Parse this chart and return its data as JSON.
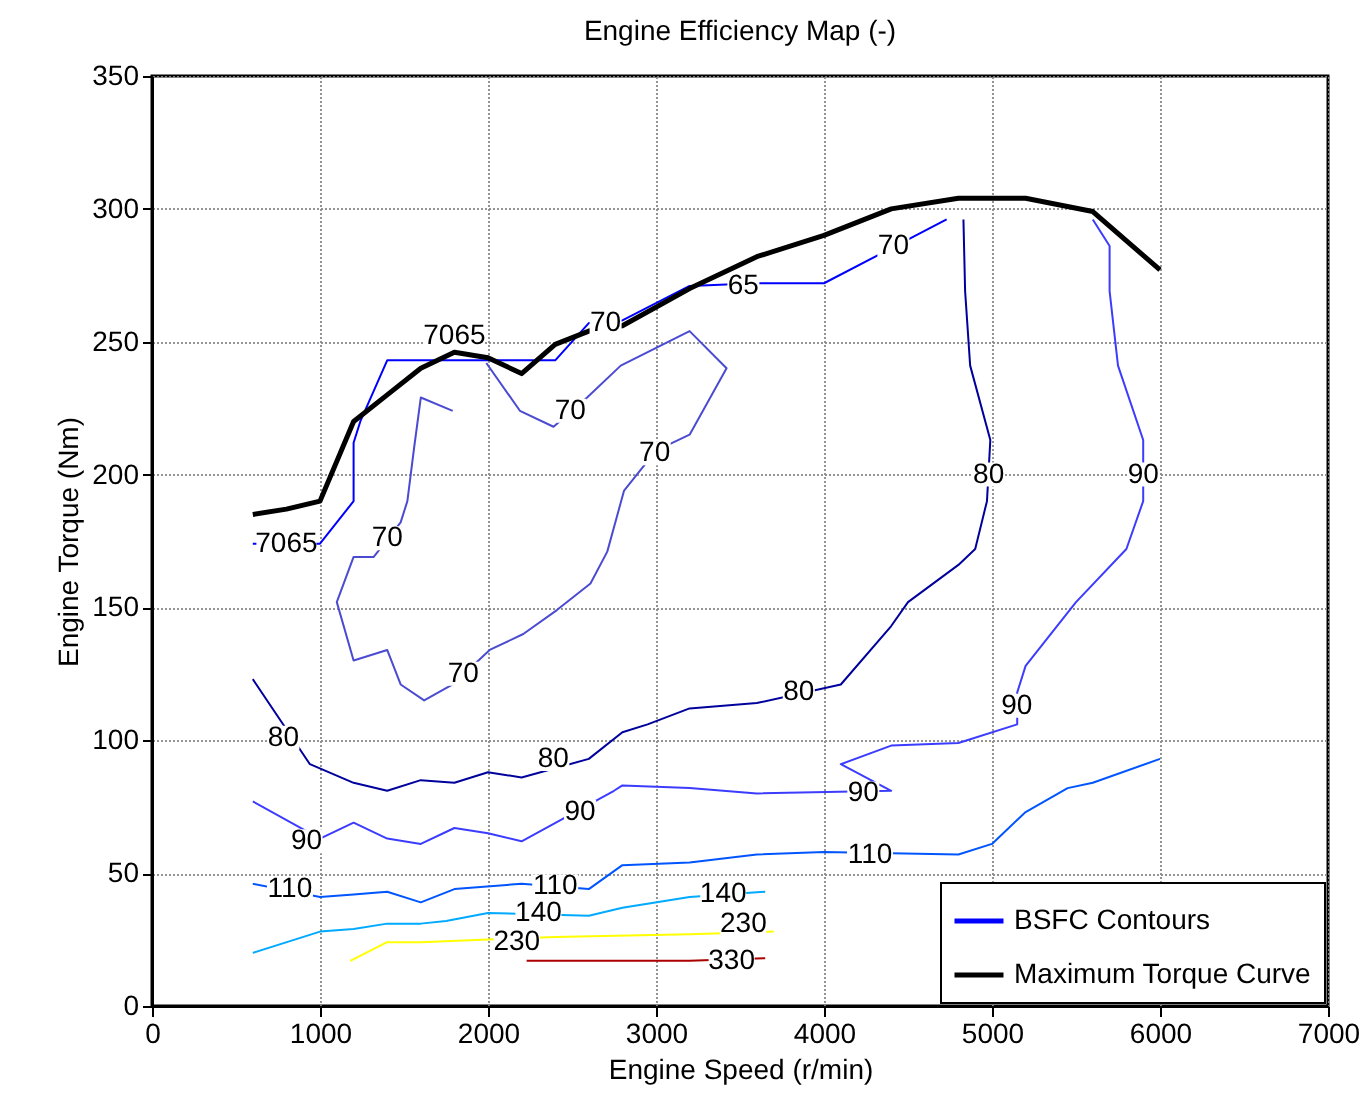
{
  "chart_data": {
    "type": "line",
    "title": "Engine Efficiency Map (-)",
    "xlabel": "Engine Speed (r/min)",
    "ylabel": "Engine Torque (Nm)",
    "xlim": [
      0,
      7000
    ],
    "xticks": [
      0,
      1000,
      2000,
      3000,
      4000,
      5000,
      6000,
      7000
    ],
    "ylim": [
      0,
      350
    ],
    "yticks": [
      0,
      50,
      100,
      150,
      200,
      250,
      300,
      350
    ],
    "grid": true,
    "legend": "bottom right",
    "series": [
      {
        "name": "BSFC Contours",
        "color": "#0000ff",
        "x": [
          600,
          1000,
          1200,
          1200,
          1240,
          1400,
          2400,
          2600,
          2800,
          3200,
          3600,
          4000,
          4730
        ],
        "values": [
          174,
          174,
          190,
          212,
          220,
          243,
          243,
          257,
          258,
          271,
          272,
          272,
          296
        ]
      },
      {
        "color": "#4b4bd2",
        "x": [
          1990,
          2190,
          2390,
          2590,
          2790,
          3200,
          3420,
          3200,
          3000,
          2810,
          2710,
          2610,
          2410,
          2210,
          2010,
          1790,
          1620,
          1480,
          1400,
          1200,
          1100,
          1200,
          1320,
          1480,
          1520,
          1560,
          1600,
          1790
        ],
        "values": [
          242,
          224,
          218,
          229,
          241,
          254,
          240,
          215,
          209,
          194,
          171,
          159,
          149,
          140,
          134,
          121,
          115,
          121,
          134,
          130,
          152,
          169,
          169,
          182,
          190,
          210,
          229,
          224
        ]
      },
      {
        "color": "#00009c",
        "x": [
          600,
          940,
          1200,
          1400,
          1600,
          1800,
          2000,
          2200,
          2600,
          2800,
          2950,
          3200,
          3600,
          4100,
          4400,
          4500,
          4800,
          4900,
          4970,
          4990,
          4870,
          4840,
          4830
        ],
        "values": [
          123,
          91,
          84,
          81,
          85,
          84,
          88,
          86,
          93,
          103,
          106,
          112,
          114,
          121,
          143,
          152,
          166,
          172,
          190,
          213,
          241,
          269,
          296
        ]
      },
      {
        "color": "#3c3cff",
        "x": [
          600,
          1000,
          1200,
          1400,
          1600,
          1800,
          2000,
          2200,
          2750,
          2800,
          3200,
          3600,
          4400,
          4100,
          4400,
          4800,
          5150,
          5150,
          5200,
          5500,
          5800,
          5900,
          5900,
          5750,
          5700,
          5700,
          5600
        ],
        "values": [
          77,
          63,
          69,
          63,
          61,
          67,
          65,
          62,
          81,
          83,
          82,
          80,
          81,
          91,
          98,
          99,
          106,
          118,
          128,
          152,
          172,
          190,
          213,
          241,
          269,
          286,
          296
        ]
      },
      {
        "color": "#0055ff",
        "x": [
          600,
          1000,
          1200,
          1400,
          1600,
          1800,
          2200,
          2600,
          2800,
          3200,
          3600,
          4000,
          4800,
          5000,
          5200,
          5450,
          5600,
          6000
        ],
        "values": [
          46,
          41,
          42,
          43,
          39,
          44,
          46,
          44,
          53,
          54,
          57,
          58,
          57,
          61,
          73,
          82,
          84,
          93
        ]
      },
      {
        "color": "#00aaff",
        "x": [
          600,
          1000,
          1200,
          1400,
          1600,
          1750,
          2000,
          2600,
          2800,
          3200,
          3650
        ],
        "values": [
          20,
          28,
          29,
          31,
          31,
          32,
          35,
          34,
          37,
          41,
          43
        ]
      },
      {
        "color": "#ffff00",
        "x": [
          1180,
          1400,
          1600,
          2000,
          2400,
          3200,
          3700
        ],
        "values": [
          17,
          24,
          24,
          25,
          26,
          27,
          28
        ]
      },
      {
        "color": "#aa0000",
        "x": [
          2230,
          2400,
          3200,
          3650
        ],
        "values": [
          17,
          17,
          17,
          18
        ]
      },
      {
        "name": "Maximum Torque Curve",
        "color": "#000000",
        "x": [
          600,
          800,
          1000,
          1200,
          1400,
          1600,
          1800,
          2000,
          2200,
          2400,
          2600,
          2800,
          3200,
          3600,
          4000,
          4400,
          4800,
          5200,
          5600,
          6000
        ],
        "values": [
          185,
          187,
          190,
          220,
          230,
          240,
          246,
          244,
          238,
          249,
          254,
          256,
          270,
          282,
          290,
          300,
          304,
          304,
          299,
          277
        ]
      }
    ],
    "annotations": [
      {
        "text": "7065",
        "x": 800,
        "y": 174
      },
      {
        "text": "7065",
        "x": 1800,
        "y": 252
      },
      {
        "text": "65",
        "x": 3520,
        "y": 271
      },
      {
        "text": "70",
        "x": 2700,
        "y": 257
      },
      {
        "text": "70",
        "x": 2490,
        "y": 224
      },
      {
        "text": "70",
        "x": 2992,
        "y": 208
      },
      {
        "text": "70",
        "x": 1400,
        "y": 176
      },
      {
        "text": "70",
        "x": 1853,
        "y": 125
      },
      {
        "text": "70",
        "x": 4413,
        "y": 286
      },
      {
        "text": "80",
        "x": 4980,
        "y": 200
      },
      {
        "text": "90",
        "x": 5900,
        "y": 200
      },
      {
        "text": "90",
        "x": 5147,
        "y": 113
      },
      {
        "text": "80",
        "x": 3850,
        "y": 118
      },
      {
        "text": "80",
        "x": 782,
        "y": 101
      },
      {
        "text": "80",
        "x": 2389,
        "y": 93
      },
      {
        "text": "90",
        "x": 920,
        "y": 62
      },
      {
        "text": "90",
        "x": 2548,
        "y": 73
      },
      {
        "text": "90",
        "x": 4234,
        "y": 80
      },
      {
        "text": "110",
        "x": 821,
        "y": 44
      },
      {
        "text": "110",
        "x": 2400,
        "y": 45
      },
      {
        "text": "110",
        "x": 4274,
        "y": 57
      },
      {
        "text": "140",
        "x": 2300,
        "y": 35
      },
      {
        "text": "230",
        "x": 2171,
        "y": 24
      },
      {
        "text": "140",
        "x": 3400,
        "y": 42
      },
      {
        "text": "230",
        "x": 3520,
        "y": 31
      },
      {
        "text": "330",
        "x": 3450,
        "y": 17
      }
    ]
  }
}
